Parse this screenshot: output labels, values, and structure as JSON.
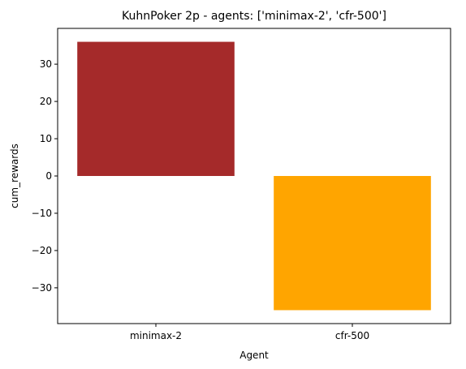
{
  "chart_data": {
    "type": "bar",
    "title": "KuhnPoker 2p - agents: ['minimax-2', 'cfr-500']",
    "xlabel": "Agent",
    "ylabel": "cum_rewards",
    "categories": [
      "minimax-2",
      "cfr-500"
    ],
    "values": [
      36,
      -36
    ],
    "colors": [
      "#a52a2a",
      "#ffa500"
    ],
    "ylim": [
      -39.6,
      39.6
    ],
    "yticks": [
      -30,
      -20,
      -10,
      0,
      10,
      20,
      30
    ],
    "ytick_labels": [
      "−30",
      "−20",
      "−10",
      "0",
      "10",
      "20",
      "30"
    ],
    "grid": false,
    "legend": "none"
  }
}
